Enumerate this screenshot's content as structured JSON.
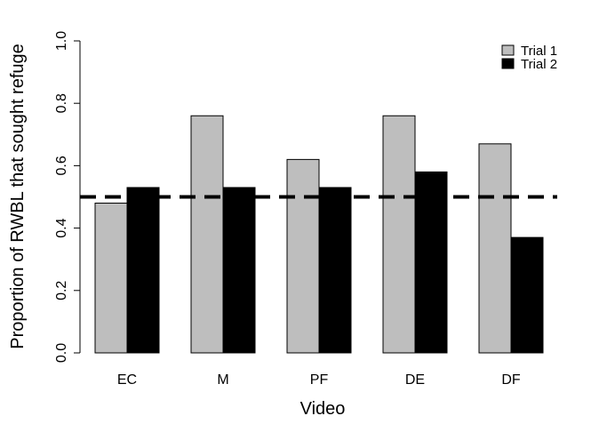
{
  "chart_data": {
    "type": "bar",
    "categories": [
      "EC",
      "M",
      "PF",
      "DE",
      "DF"
    ],
    "series": [
      {
        "name": "Trial 1",
        "color": "#bebebe",
        "values": [
          0.48,
          0.76,
          0.62,
          0.76,
          0.67
        ]
      },
      {
        "name": "Trial 2",
        "color": "#000000",
        "values": [
          0.53,
          0.53,
          0.53,
          0.58,
          0.37
        ]
      }
    ],
    "xlabel": "Video",
    "ylabel": "Proportion of RWBL that sought refuge",
    "ylim": [
      0,
      1
    ],
    "yticks": [
      "0.0",
      "0.2",
      "0.4",
      "0.6",
      "0.8",
      "1.0"
    ],
    "reference_line": {
      "y": 0.5,
      "style": "dashed",
      "color": "#000000"
    },
    "legend": {
      "position": "top-right"
    },
    "grid": false
  }
}
